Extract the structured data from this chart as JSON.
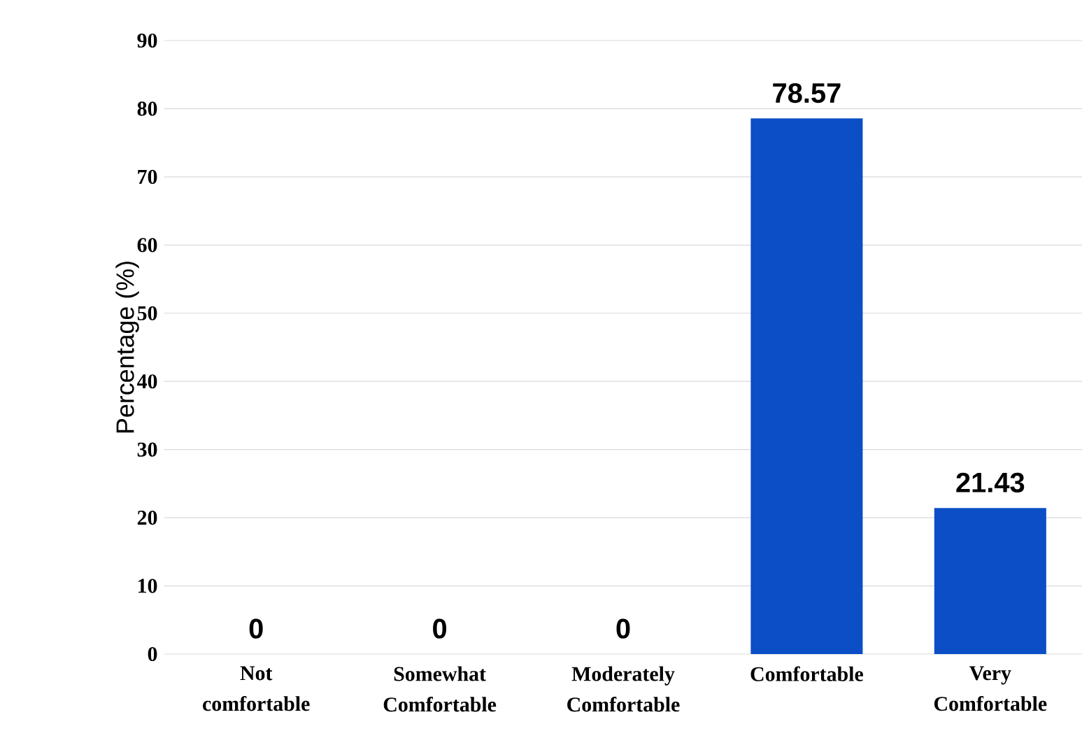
{
  "chart_data": {
    "type": "bar",
    "ylabel": "Percentage (%)",
    "categories": [
      "Not comfortable",
      "Somewhat Comfortable",
      "Moderately Comfortable",
      "Comfortable",
      "Very Comfortable"
    ],
    "values": [
      0,
      0,
      0,
      78.57,
      21.43
    ],
    "color": "#0b4ec6",
    "ylim": [
      0,
      90
    ],
    "yticks": [
      0,
      10,
      20,
      30,
      40,
      50,
      60,
      70,
      80,
      90
    ],
    "grid": "y",
    "data_labels": true
  }
}
